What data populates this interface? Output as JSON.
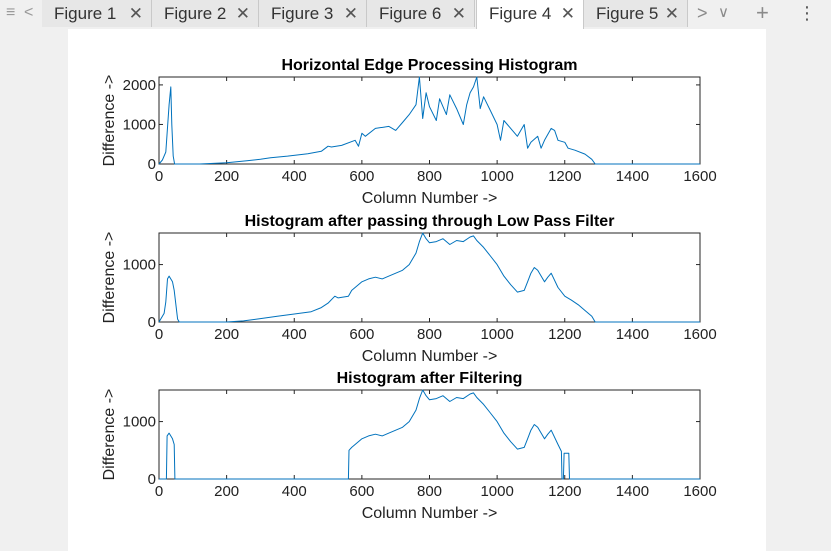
{
  "tabs": {
    "nav_left_menu": "≡",
    "nav_left_arrow": "<",
    "items": [
      {
        "label": "Figure 1",
        "active": false
      },
      {
        "label": "Figure 2",
        "active": false
      },
      {
        "label": "Figure 3",
        "active": false
      },
      {
        "label": "Figure 6",
        "active": false
      },
      {
        "label": "Figure 4",
        "active": true
      },
      {
        "label": "Figure 5",
        "active": false
      }
    ],
    "close_glyph": "✕",
    "nav_right_arrow": ">",
    "dropdown_glyph": "∨",
    "add_glyph": "+",
    "more_glyph": "⋮"
  },
  "colors": {
    "line": "#0072BD",
    "axes": "#262626",
    "figure_bg": "#ffffff",
    "window_bg": "#f0f0f0"
  },
  "chart_data": [
    {
      "type": "line",
      "title": "Horizontal Edge Processing Histogram",
      "xlabel": "Column Number ->",
      "ylabel": "Difference ->",
      "xlim": [
        0,
        1600
      ],
      "ylim": [
        0,
        2200
      ],
      "xticks": [
        0,
        200,
        400,
        600,
        800,
        1000,
        1200,
        1400,
        1600
      ],
      "yticks": [
        0,
        1000,
        2000
      ],
      "grid": false,
      "x": [
        0,
        10,
        20,
        30,
        35,
        38,
        42,
        46,
        60,
        120,
        200,
        260,
        300,
        330,
        380,
        440,
        480,
        500,
        510,
        540,
        580,
        590,
        600,
        610,
        640,
        680,
        700,
        720,
        740,
        760,
        770,
        780,
        790,
        800,
        820,
        830,
        850,
        860,
        880,
        900,
        910,
        920,
        930,
        940,
        950,
        960,
        980,
        1000,
        1010,
        1020,
        1040,
        1060,
        1080,
        1090,
        1100,
        1120,
        1130,
        1140,
        1160,
        1170,
        1180,
        1200,
        1210,
        1230,
        1260,
        1280,
        1290,
        1400,
        1600
      ],
      "y": [
        0,
        100,
        300,
        1500,
        1950,
        1000,
        200,
        0,
        0,
        0,
        30,
        80,
        120,
        160,
        200,
        260,
        320,
        450,
        430,
        470,
        600,
        450,
        780,
        700,
        900,
        950,
        850,
        1050,
        1250,
        1500,
        2200,
        1150,
        1800,
        1450,
        1100,
        1650,
        1250,
        1750,
        1400,
        1000,
        1500,
        1800,
        1950,
        2200,
        1400,
        1700,
        1350,
        1000,
        600,
        1100,
        900,
        700,
        1000,
        400,
        550,
        700,
        400,
        600,
        900,
        850,
        600,
        550,
        400,
        350,
        250,
        120,
        0,
        0,
        0
      ]
    },
    {
      "type": "line",
      "title": "Histogram after passing through Low Pass Filter",
      "xlabel": "Column Number ->",
      "ylabel": "Difference ->",
      "xlim": [
        0,
        1600
      ],
      "ylim": [
        0,
        1550
      ],
      "xticks": [
        0,
        200,
        400,
        600,
        800,
        1000,
        1200,
        1400,
        1600
      ],
      "yticks": [
        0,
        1000
      ],
      "grid": false,
      "x": [
        0,
        10,
        15,
        20,
        25,
        30,
        40,
        45,
        55,
        60,
        200,
        250,
        300,
        350,
        400,
        450,
        480,
        500,
        520,
        530,
        560,
        570,
        600,
        620,
        640,
        660,
        680,
        700,
        720,
        740,
        760,
        770,
        780,
        790,
        800,
        820,
        840,
        860,
        880,
        900,
        920,
        930,
        940,
        960,
        980,
        1000,
        1020,
        1040,
        1060,
        1080,
        1090,
        1100,
        1110,
        1120,
        1140,
        1150,
        1160,
        1180,
        1200,
        1220,
        1240,
        1260,
        1280,
        1290,
        1600
      ],
      "y": [
        0,
        100,
        150,
        350,
        750,
        800,
        700,
        550,
        50,
        0,
        0,
        20,
        60,
        100,
        140,
        180,
        250,
        330,
        450,
        420,
        450,
        550,
        700,
        750,
        780,
        750,
        800,
        850,
        900,
        1000,
        1200,
        1400,
        1550,
        1450,
        1380,
        1400,
        1450,
        1350,
        1420,
        1400,
        1480,
        1500,
        1420,
        1300,
        1150,
        1000,
        800,
        650,
        520,
        550,
        700,
        850,
        950,
        900,
        700,
        780,
        850,
        600,
        450,
        380,
        300,
        200,
        100,
        0,
        0
      ]
    },
    {
      "type": "line",
      "title": "Histogram after Filtering",
      "xlabel": "Column Number ->",
      "ylabel": "Difference ->",
      "xlim": [
        0,
        1600
      ],
      "ylim": [
        0,
        1550
      ],
      "xticks": [
        0,
        200,
        400,
        600,
        800,
        1000,
        1200,
        1400,
        1600
      ],
      "yticks": [
        0,
        1000
      ],
      "grid": false,
      "x": [
        0,
        22,
        24,
        30,
        40,
        45,
        47,
        50,
        560,
        562,
        570,
        600,
        620,
        640,
        660,
        680,
        700,
        720,
        740,
        760,
        770,
        780,
        790,
        800,
        820,
        840,
        860,
        880,
        900,
        920,
        930,
        940,
        960,
        980,
        1000,
        1020,
        1040,
        1060,
        1080,
        1090,
        1100,
        1110,
        1120,
        1140,
        1150,
        1160,
        1180,
        1190,
        1192,
        1196,
        1198,
        1200,
        1212,
        1214,
        1600
      ],
      "y": [
        0,
        0,
        750,
        800,
        700,
        600,
        0,
        0,
        0,
        500,
        550,
        700,
        750,
        780,
        750,
        800,
        850,
        900,
        1000,
        1200,
        1400,
        1550,
        1450,
        1380,
        1400,
        1450,
        1350,
        1420,
        1400,
        1480,
        1500,
        1420,
        1300,
        1150,
        1000,
        800,
        650,
        520,
        550,
        700,
        850,
        950,
        900,
        700,
        780,
        850,
        600,
        480,
        0,
        0,
        450,
        450,
        450,
        0,
        0
      ]
    }
  ]
}
